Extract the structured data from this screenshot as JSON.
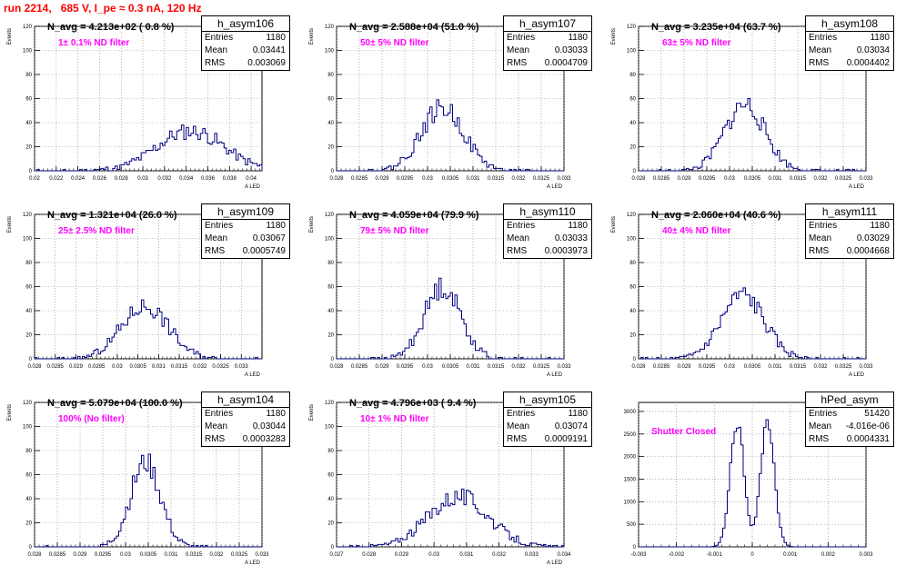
{
  "title": "run 2214,   685 V, I_pe ≈ 0.3 nA, 120 Hz",
  "title_color": "#ff0000",
  "line_color": "#000080",
  "label_color": "#ff00ff",
  "chart_data": [
    {
      "type": "histogram",
      "name": "h_asym106",
      "navg": "N_avg = 4.213e+02 ( 0.8 %)",
      "filter": "1± 0.1% ND filter",
      "stats": {
        "entries": "1180",
        "mean": "0.03441",
        "rms": "0.003069"
      },
      "xlabel": "A_LED",
      "ylabel": "Events",
      "xlim": [
        0.02,
        0.041
      ],
      "ylim": [
        0,
        120
      ],
      "xticks": [
        "0.02",
        "0.022",
        "0.024",
        "0.026",
        "0.028",
        "0.03",
        "0.032",
        "0.034",
        "0.036",
        "0.038",
        "0.04"
      ],
      "yticks": [
        "0",
        "20",
        "40",
        "60",
        "80",
        "100",
        "120"
      ],
      "dist": {
        "type": "gauss",
        "mu": 0.0344,
        "sigma": 0.0031,
        "peak": 33,
        "nbins": 96,
        "seed": 11
      }
    },
    {
      "type": "histogram",
      "name": "h_asym107",
      "navg": "N_avg = 2.588e+04 (51.0 %)",
      "filter": "50± 5% ND filter",
      "stats": {
        "entries": "1180",
        "mean": "0.03033",
        "rms": "0.0004709"
      },
      "xlabel": "A_LED",
      "ylabel": "Events",
      "xlim": [
        0.028,
        0.033
      ],
      "ylim": [
        0,
        120
      ],
      "xticks": [
        "0.028",
        "0.0285",
        "0.029",
        "0.0295",
        "0.03",
        "0.0305",
        "0.031",
        "0.0315",
        "0.032",
        "0.0325",
        "0.033"
      ],
      "yticks": [
        "0",
        "20",
        "40",
        "60",
        "80",
        "100",
        "120"
      ],
      "dist": {
        "type": "gauss",
        "mu": 0.03033,
        "sigma": 0.00047,
        "peak": 52,
        "nbins": 100,
        "seed": 22
      }
    },
    {
      "type": "histogram",
      "name": "h_asym108",
      "navg": "N_avg = 3.235e+04 (63.7 %)",
      "filter": "63± 5% ND filter",
      "stats": {
        "entries": "1180",
        "mean": "0.03034",
        "rms": "0.0004402"
      },
      "xlabel": "A_LED",
      "ylabel": "Events",
      "xlim": [
        0.028,
        0.033
      ],
      "ylim": [
        0,
        120
      ],
      "xticks": [
        "0.028",
        "0.0285",
        "0.029",
        "0.0295",
        "0.03",
        "0.0305",
        "0.031",
        "0.0315",
        "0.032",
        "0.0325",
        "0.033"
      ],
      "yticks": [
        "0",
        "20",
        "40",
        "60",
        "80",
        "100",
        "120"
      ],
      "dist": {
        "type": "gauss",
        "mu": 0.03034,
        "sigma": 0.00044,
        "peak": 55,
        "nbins": 100,
        "seed": 33
      }
    },
    {
      "type": "histogram",
      "name": "h_asym109",
      "navg": "N_avg = 1.321e+04 (26.0 %)",
      "filter": "25± 2.5% ND filter",
      "stats": {
        "entries": "1180",
        "mean": "0.03067",
        "rms": "0.0005749"
      },
      "xlabel": "A_LED",
      "ylabel": "Events",
      "xlim": [
        0.028,
        0.0335
      ],
      "ylim": [
        0,
        120
      ],
      "xticks": [
        "0.028",
        "0.0285",
        "0.029",
        "0.0295",
        "0.03",
        "0.0305",
        "0.031",
        "0.0315",
        "0.032",
        "0.0325",
        "0.033"
      ],
      "yticks": [
        "0",
        "20",
        "40",
        "60",
        "80",
        "100",
        "120"
      ],
      "dist": {
        "type": "gauss",
        "mu": 0.03067,
        "sigma": 0.00057,
        "peak": 44,
        "nbins": 100,
        "seed": 44
      }
    },
    {
      "type": "histogram",
      "name": "h_asym110",
      "navg": "N_avg = 4.059e+04 (79.9 %)",
      "filter": "79± 5% ND filter",
      "stats": {
        "entries": "1180",
        "mean": "0.03033",
        "rms": "0.0003973"
      },
      "xlabel": "A_LED",
      "ylabel": "Events",
      "xlim": [
        0.028,
        0.033
      ],
      "ylim": [
        0,
        120
      ],
      "xticks": [
        "0.028",
        "0.0285",
        "0.029",
        "0.0295",
        "0.03",
        "0.0305",
        "0.031",
        "0.0315",
        "0.032",
        "0.0325",
        "0.033"
      ],
      "yticks": [
        "0",
        "20",
        "40",
        "60",
        "80",
        "100",
        "120"
      ],
      "dist": {
        "type": "gauss",
        "mu": 0.03033,
        "sigma": 0.0004,
        "peak": 60,
        "nbins": 100,
        "seed": 55
      }
    },
    {
      "type": "histogram",
      "name": "h_asym111",
      "navg": "N_avg = 2.060e+04 (40.6 %)",
      "filter": "40± 4% ND filter",
      "stats": {
        "entries": "1180",
        "mean": "0.03029",
        "rms": "0.0004668"
      },
      "xlabel": "A_LED",
      "ylabel": "Events",
      "xlim": [
        0.028,
        0.033
      ],
      "ylim": [
        0,
        120
      ],
      "xticks": [
        "0.028",
        "0.0285",
        "0.029",
        "0.0295",
        "0.03",
        "0.0305",
        "0.031",
        "0.0315",
        "0.032",
        "0.0325",
        "0.033"
      ],
      "yticks": [
        "0",
        "20",
        "40",
        "60",
        "80",
        "100",
        "120"
      ],
      "dist": {
        "type": "gauss",
        "mu": 0.03029,
        "sigma": 0.00047,
        "peak": 53,
        "nbins": 100,
        "seed": 66
      }
    },
    {
      "type": "histogram",
      "name": "h_asym104",
      "navg": "N_avg = 5.079e+04 (100.0 %)",
      "filter": "100% (No filter)",
      "stats": {
        "entries": "1180",
        "mean": "0.03044",
        "rms": "0.0003283"
      },
      "xlabel": "A_LED",
      "ylabel": "Events",
      "xlim": [
        0.028,
        0.033
      ],
      "ylim": [
        0,
        120
      ],
      "xticks": [
        "0.028",
        "0.0285",
        "0.029",
        "0.0295",
        "0.03",
        "0.0305",
        "0.031",
        "0.0315",
        "0.032",
        "0.0325",
        "0.033"
      ],
      "yticks": [
        "0",
        "20",
        "40",
        "60",
        "80",
        "100",
        "120"
      ],
      "dist": {
        "type": "gauss",
        "mu": 0.03044,
        "sigma": 0.00033,
        "peak": 70,
        "nbins": 100,
        "seed": 77
      }
    },
    {
      "type": "histogram",
      "name": "h_asym105",
      "navg": "N_avg = 4.796e+03 ( 9.4 %)",
      "filter": "10± 1% ND filter",
      "stats": {
        "entries": "1180",
        "mean": "0.03074",
        "rms": "0.0009191"
      },
      "xlabel": "A_LED",
      "ylabel": "Events",
      "xlim": [
        0.027,
        0.034
      ],
      "ylim": [
        0,
        120
      ],
      "xticks": [
        "0.027",
        "0.028",
        "0.029",
        "0.03",
        "0.031",
        "0.032",
        "0.033",
        "0.034"
      ],
      "yticks": [
        "0",
        "20",
        "40",
        "60",
        "80",
        "100",
        "120"
      ],
      "dist": {
        "type": "gauss",
        "mu": 0.03074,
        "sigma": 0.00092,
        "peak": 42,
        "nbins": 100,
        "seed": 88
      }
    },
    {
      "type": "histogram",
      "name": "hPed_asym",
      "navg": "",
      "filter": "Shutter Closed",
      "stats": {
        "entries": "51420",
        "mean": "-4.016e-06",
        "rms": "0.0004331"
      },
      "xlabel": "",
      "ylabel": "",
      "xlim": [
        -0.003,
        0.003
      ],
      "ylim": [
        0,
        3200
      ],
      "xticks": [
        "-0.003",
        "-0.002",
        "-0.001",
        "0",
        "0.001",
        "0.002",
        "0.003"
      ],
      "yticks": [
        "0",
        "500",
        "1000",
        "1500",
        "2000",
        "2500",
        "3000"
      ],
      "dist": {
        "type": "double",
        "mu1": -0.0004,
        "mu2": 0.0004,
        "sigma": 0.00018,
        "peak": 2780,
        "nbins": 100,
        "seed": 99
      }
    }
  ]
}
